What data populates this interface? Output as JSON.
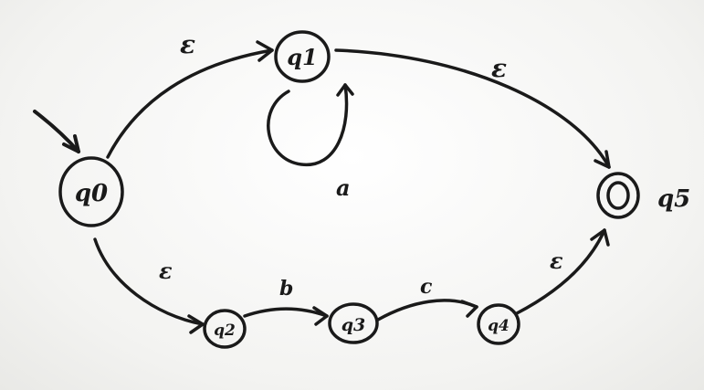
{
  "diagram": {
    "ink_color": "#1a1a1a",
    "states": [
      {
        "id": "q0",
        "label": "q0",
        "start": true,
        "accepting": false
      },
      {
        "id": "q1",
        "label": "q1",
        "start": false,
        "accepting": false
      },
      {
        "id": "q2",
        "label": "q2",
        "start": false,
        "accepting": false
      },
      {
        "id": "q3",
        "label": "q3",
        "start": false,
        "accepting": false
      },
      {
        "id": "q4",
        "label": "q4",
        "start": false,
        "accepting": false
      },
      {
        "id": "q5",
        "label": "q5",
        "start": false,
        "accepting": true
      }
    ],
    "transitions": [
      {
        "from": "q0",
        "to": "q1",
        "label": "ε"
      },
      {
        "from": "q1",
        "to": "q1",
        "label": "a"
      },
      {
        "from": "q1",
        "to": "q5",
        "label": "ε"
      },
      {
        "from": "q0",
        "to": "q2",
        "label": "ε"
      },
      {
        "from": "q2",
        "to": "q3",
        "label": "b"
      },
      {
        "from": "q3",
        "to": "q4",
        "label": "c"
      },
      {
        "from": "q4",
        "to": "q5",
        "label": "ε"
      }
    ]
  }
}
